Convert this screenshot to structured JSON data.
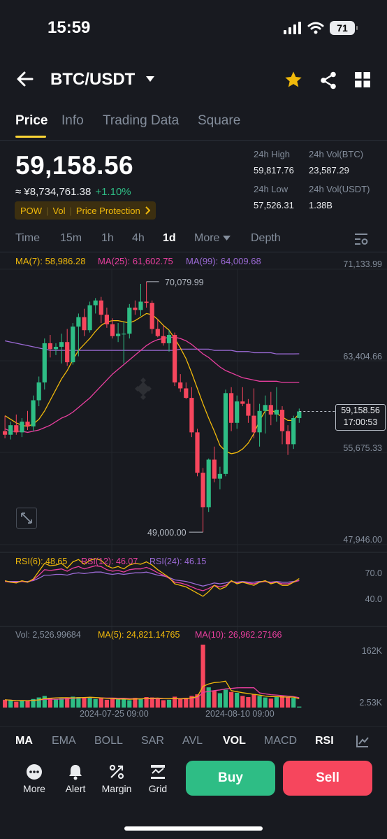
{
  "status_bar": {
    "time": "15:59",
    "battery": "71"
  },
  "header": {
    "pair": "BTC/USDT"
  },
  "tabs": [
    "Price",
    "Info",
    "Trading Data",
    "Square"
  ],
  "price": {
    "last": "59,158.56",
    "cny": "≈ ¥8,734,761.38",
    "change": "+1.10%",
    "tags": [
      "POW",
      "Vol",
      "Price Protection"
    ]
  },
  "stats": {
    "high_label": "24h High",
    "high": "59,817.76",
    "vol_btc_label": "24h Vol(BTC)",
    "vol_btc": "23,587.29",
    "low_label": "24h Low",
    "low": "57,526.31",
    "vol_usdt_label": "24h Vol(USDT)",
    "vol_usdt": "1.38B"
  },
  "intervals": [
    "Time",
    "15m",
    "1h",
    "4h",
    "1d",
    "More",
    "Depth"
  ],
  "active_interval": "1d",
  "ma": {
    "ma7": "MA(7): 58,986.28",
    "ma25": "MA(25): 61,602.75",
    "ma99": "MA(99): 64,009.68"
  },
  "rsi": {
    "rsi6": "RSI(6): 48.65",
    "rsi12": "RSI(12): 46.07",
    "rsi24": "RSI(24): 46.15",
    "axis_top": "70.0",
    "axis_mid": "40.0"
  },
  "vol": {
    "vol": "Vol: 2,526.99684",
    "ma5": "MA(5): 24,821.14765",
    "ma10": "MA(10): 26,962.27166",
    "axis_top": "162K",
    "axis_bottom": "2.53K"
  },
  "dates": [
    "2024-07-25 09:00",
    "2024-08-10 09:00"
  ],
  "indicators": [
    "MA",
    "EMA",
    "BOLL",
    "SAR",
    "AVL",
    "VOL",
    "MACD",
    "RSI"
  ],
  "actions": [
    "More",
    "Alert",
    "Margin",
    "Grid"
  ],
  "buy_label": "Buy",
  "sell_label": "Sell",
  "colors": {
    "up": "#2ebd85",
    "down": "#f6465d",
    "ma7": "#f0b90b",
    "ma25": "#e93f9f",
    "ma99": "#9c6ad6",
    "accent": "#fcd535"
  },
  "chart_data": {
    "type": "candlestick",
    "y_axis_labels": [
      "71,133.99",
      "63,404.66",
      "55,675.33",
      "47,946.00"
    ],
    "ylim": [
      47946.0,
      71133.99
    ],
    "max_marker": "70,079.99",
    "min_marker": "49,000.00",
    "last_price_tag": "59,158.56",
    "countdown": "17:00:53",
    "candles": [
      {
        "o": 57500,
        "h": 58800,
        "l": 56900,
        "c": 57200
      },
      {
        "o": 57200,
        "h": 58300,
        "l": 56800,
        "c": 58000
      },
      {
        "o": 58000,
        "h": 58900,
        "l": 57200,
        "c": 57400
      },
      {
        "o": 57400,
        "h": 58600,
        "l": 57000,
        "c": 58300
      },
      {
        "o": 58300,
        "h": 59200,
        "l": 57600,
        "c": 57900
      },
      {
        "o": 57900,
        "h": 60500,
        "l": 57500,
        "c": 60100
      },
      {
        "o": 60100,
        "h": 62100,
        "l": 59600,
        "c": 61600
      },
      {
        "o": 61600,
        "h": 65300,
        "l": 61000,
        "c": 64900
      },
      {
        "o": 64900,
        "h": 65600,
        "l": 63700,
        "c": 64400
      },
      {
        "o": 64400,
        "h": 64900,
        "l": 63900,
        "c": 64600
      },
      {
        "o": 64600,
        "h": 65700,
        "l": 63200,
        "c": 65000
      },
      {
        "o": 65000,
        "h": 66100,
        "l": 63000,
        "c": 63300
      },
      {
        "o": 63300,
        "h": 66600,
        "l": 63100,
        "c": 66300
      },
      {
        "o": 66300,
        "h": 67400,
        "l": 63800,
        "c": 67100
      },
      {
        "o": 67100,
        "h": 67800,
        "l": 65500,
        "c": 66000
      },
      {
        "o": 66000,
        "h": 68400,
        "l": 65800,
        "c": 68100
      },
      {
        "o": 68100,
        "h": 68700,
        "l": 67400,
        "c": 68500
      },
      {
        "o": 68500,
        "h": 68800,
        "l": 66600,
        "c": 67300
      },
      {
        "o": 67300,
        "h": 67900,
        "l": 66200,
        "c": 66500
      },
      {
        "o": 66500,
        "h": 67000,
        "l": 65300,
        "c": 65500
      },
      {
        "o": 65500,
        "h": 66600,
        "l": 65000,
        "c": 65700
      },
      {
        "o": 65700,
        "h": 66700,
        "l": 63200,
        "c": 65700
      },
      {
        "o": 65700,
        "h": 68200,
        "l": 65300,
        "c": 67900
      },
      {
        "o": 67900,
        "h": 68500,
        "l": 67300,
        "c": 67700
      },
      {
        "o": 67700,
        "h": 69900,
        "l": 67200,
        "c": 68400
      },
      {
        "o": 68400,
        "h": 70080,
        "l": 67900,
        "c": 68300
      },
      {
        "o": 68300,
        "h": 68500,
        "l": 65700,
        "c": 66100
      },
      {
        "o": 66100,
        "h": 66900,
        "l": 65400,
        "c": 65500
      },
      {
        "o": 65500,
        "h": 66400,
        "l": 64700,
        "c": 64900
      },
      {
        "o": 64900,
        "h": 66000,
        "l": 64200,
        "c": 65600
      },
      {
        "o": 65600,
        "h": 65800,
        "l": 61300,
        "c": 61600
      },
      {
        "o": 61600,
        "h": 62300,
        "l": 60800,
        "c": 61100
      },
      {
        "o": 61100,
        "h": 61600,
        "l": 60200,
        "c": 60300
      },
      {
        "o": 60300,
        "h": 61200,
        "l": 57000,
        "c": 57400
      },
      {
        "o": 57400,
        "h": 57700,
        "l": 53700,
        "c": 54000
      },
      {
        "o": 54000,
        "h": 54400,
        "l": 49000,
        "c": 51100
      },
      {
        "o": 51100,
        "h": 55200,
        "l": 50700,
        "c": 55100
      },
      {
        "o": 55100,
        "h": 56200,
        "l": 53200,
        "c": 53500
      },
      {
        "o": 53500,
        "h": 54500,
        "l": 52600,
        "c": 53900
      },
      {
        "o": 53900,
        "h": 61000,
        "l": 53700,
        "c": 60700
      },
      {
        "o": 60700,
        "h": 61200,
        "l": 57500,
        "c": 58200
      },
      {
        "o": 58200,
        "h": 60500,
        "l": 57700,
        "c": 60000
      },
      {
        "o": 60000,
        "h": 61200,
        "l": 59600,
        "c": 59800
      },
      {
        "o": 59800,
        "h": 60200,
        "l": 58200,
        "c": 58800
      },
      {
        "o": 58800,
        "h": 61100,
        "l": 56900,
        "c": 57400
      },
      {
        "o": 57400,
        "h": 59800,
        "l": 56200,
        "c": 59200
      },
      {
        "o": 59200,
        "h": 60500,
        "l": 57300,
        "c": 59700
      },
      {
        "o": 59700,
        "h": 60800,
        "l": 58000,
        "c": 58900
      },
      {
        "o": 58900,
        "h": 61200,
        "l": 58300,
        "c": 59300
      },
      {
        "o": 59300,
        "h": 59600,
        "l": 56400,
        "c": 57500
      },
      {
        "o": 57500,
        "h": 58000,
        "l": 55500,
        "c": 56400
      },
      {
        "o": 56400,
        "h": 58800,
        "l": 56000,
        "c": 58600
      },
      {
        "o": 58600,
        "h": 59400,
        "l": 58200,
        "c": 59160
      }
    ],
    "ma7": [
      58800,
      58500,
      58200,
      58000,
      57900,
      58100,
      58500,
      59200,
      60100,
      61000,
      61900,
      62600,
      63500,
      64300,
      64800,
      65300,
      65900,
      66400,
      66700,
      66800,
      66800,
      66700,
      66600,
      66800,
      67100,
      67400,
      67300,
      66900,
      66400,
      66000,
      65300,
      64500,
      63600,
      62400,
      61100,
      59800,
      58600,
      57500,
      56300,
      55800,
      55600,
      55700,
      56000,
      56500,
      57300,
      58400,
      59200,
      59300,
      59000,
      58700,
      58400,
      58400,
      58990
    ],
    "ma25": [
      57700,
      57500,
      57500,
      57500,
      57400,
      57500,
      57600,
      57800,
      58000,
      58300,
      58600,
      58800,
      59100,
      59500,
      59900,
      60300,
      60800,
      61300,
      61800,
      62300,
      62700,
      63100,
      63500,
      63900,
      64300,
      64700,
      65000,
      65200,
      65300,
      65400,
      65400,
      65300,
      65100,
      64800,
      64400,
      64000,
      63700,
      63300,
      62900,
      62600,
      62400,
      62200,
      62000,
      61900,
      61800,
      61700,
      61700,
      61700,
      61700,
      61600,
      61600,
      61600,
      61600
    ],
    "ma99": [
      65100,
      65000,
      64900,
      64800,
      64700,
      64600,
      64500,
      64400,
      64300,
      64300,
      64300,
      64300,
      64300,
      64300,
      64300,
      64300,
      64300,
      64300,
      64300,
      64300,
      64300,
      64300,
      64300,
      64300,
      64300,
      64300,
      64300,
      64300,
      64300,
      64300,
      64300,
      64400,
      64400,
      64400,
      64400,
      64400,
      64400,
      64300,
      64300,
      64300,
      64300,
      64200,
      64200,
      64200,
      64100,
      64100,
      64100,
      64100,
      64000,
      64000,
      64000,
      64000,
      64010
    ],
    "rsi6": [
      46,
      44,
      43,
      46,
      44,
      48,
      58,
      68,
      65,
      66,
      68,
      62,
      70,
      73,
      67,
      72,
      74,
      72,
      65,
      62,
      64,
      61,
      66,
      68,
      67,
      70,
      66,
      60,
      55,
      50,
      42,
      40,
      38,
      34,
      30,
      26,
      32,
      40,
      35,
      38,
      46,
      42,
      44,
      42,
      40,
      44,
      46,
      42,
      44,
      40,
      40,
      44,
      48.65
    ],
    "rsi12": [
      45,
      44,
      44,
      45,
      44,
      47,
      53,
      60,
      59,
      60,
      61,
      58,
      62,
      64,
      61,
      63,
      65,
      64,
      60,
      58,
      59,
      57,
      60,
      61,
      61,
      63,
      60,
      56,
      53,
      49,
      44,
      43,
      41,
      38,
      35,
      33,
      36,
      40,
      38,
      40,
      45,
      43,
      44,
      43,
      42,
      44,
      45,
      43,
      44,
      42,
      42,
      44,
      46.07
    ],
    "rsi24": [
      45,
      45,
      45,
      45,
      45,
      46,
      49,
      53,
      53,
      54,
      54,
      53,
      55,
      56,
      55,
      56,
      57,
      57,
      55,
      54,
      55,
      54,
      55,
      56,
      56,
      57,
      55,
      53,
      52,
      50,
      47,
      46,
      45,
      43,
      41,
      39,
      41,
      43,
      42,
      43,
      45,
      44,
      45,
      44,
      44,
      45,
      45,
      44,
      45,
      44,
      44,
      45,
      46.15
    ],
    "volume": [
      20000,
      18000,
      15000,
      19000,
      17000,
      22000,
      26000,
      30000,
      25000,
      22000,
      24000,
      26000,
      28000,
      27000,
      25000,
      27000,
      22000,
      24000,
      20000,
      22000,
      21000,
      24000,
      19000,
      25000,
      22000,
      27000,
      26000,
      22000,
      19000,
      20000,
      28000,
      23000,
      25000,
      30000,
      34000,
      162000,
      52000,
      43000,
      37000,
      46000,
      40000,
      38000,
      30000,
      27000,
      35000,
      30000,
      26000,
      23000,
      27000,
      31000,
      28000,
      25000,
      2527
    ]
  }
}
